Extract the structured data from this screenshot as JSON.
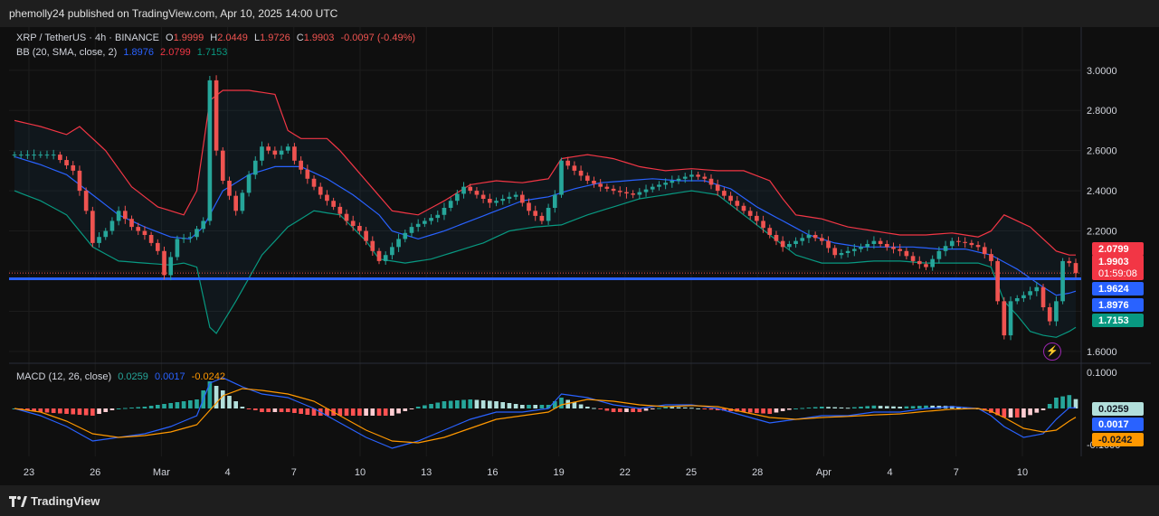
{
  "header": {
    "published": "phemolly24 published on TradingView.com, Apr 10, 2025 14:00 UTC"
  },
  "footer": {
    "brand": "TradingView"
  },
  "legend_main": {
    "symbol": "XRP / TetherUS · 4h · BINANCE",
    "o_label": "O",
    "o": "1.9999",
    "h_label": "H",
    "h": "2.0449",
    "l_label": "L",
    "l": "1.9726",
    "c_label": "C",
    "c": "1.9903",
    "change": "-0.0097 (-0.49%)"
  },
  "legend_bb": {
    "label": "BB (20, SMA, close, 2)",
    "basis": "1.8976",
    "upper": "2.0799",
    "lower": "1.7153"
  },
  "legend_macd": {
    "label": "MACD (12, 26, close)",
    "hist": "0.0259",
    "macd": "0.0017",
    "signal": "-0.0242"
  },
  "colors": {
    "up": "#26a69a",
    "down": "#ef5350",
    "bb_upper": "#f23645",
    "bb_basis": "#2962ff",
    "bb_lower": "#089981",
    "hline": "#2962ff",
    "signal": "#ff9800",
    "macd": "#2962ff"
  },
  "chart_data": [
    {
      "type": "candlestick",
      "title": "XRP / TetherUS · 4h · BINANCE",
      "y_ticks": [
        "3.0000",
        "2.8000",
        "2.6000",
        "2.4000",
        "2.2000",
        "1.6000"
      ],
      "ylim": [
        1.55,
        3.08
      ],
      "x_ticks": [
        "23",
        "26",
        "Mar",
        "4",
        "7",
        "10",
        "13",
        "16",
        "19",
        "22",
        "25",
        "28",
        "Apr",
        "4",
        "7",
        "10"
      ],
      "horizontal_line": 1.962,
      "price_labels": [
        {
          "text": "2.0799",
          "value": 2.0799,
          "kind": "bb_upper"
        },
        {
          "text": "1.9903",
          "value": 1.9903,
          "kind": "last",
          "sub": "01:59:08"
        },
        {
          "text": "1.9624",
          "value": 1.9624,
          "kind": "hline"
        },
        {
          "text": "1.8976",
          "value": 1.8976,
          "kind": "bb_basis"
        },
        {
          "text": "1.7153",
          "value": 1.7153,
          "kind": "bb_lower"
        }
      ],
      "close_path": [
        [
          0,
          2.58
        ],
        [
          6,
          2.58
        ],
        [
          9,
          2.5
        ],
        [
          11,
          2.3
        ],
        [
          12,
          2.14
        ],
        [
          14,
          2.2
        ],
        [
          16,
          2.3
        ],
        [
          18,
          2.22
        ],
        [
          20,
          2.18
        ],
        [
          22,
          2.1
        ],
        [
          23,
          1.98
        ],
        [
          25,
          2.16
        ],
        [
          27,
          2.17
        ],
        [
          29,
          2.25
        ],
        [
          30,
          2.95
        ],
        [
          31,
          2.6
        ],
        [
          32,
          2.45
        ],
        [
          34,
          2.3
        ],
        [
          36,
          2.48
        ],
        [
          38,
          2.62
        ],
        [
          40,
          2.58
        ],
        [
          42,
          2.62
        ],
        [
          43,
          2.55
        ],
        [
          45,
          2.46
        ],
        [
          47,
          2.38
        ],
        [
          49,
          2.32
        ],
        [
          51,
          2.25
        ],
        [
          53,
          2.2
        ],
        [
          55,
          2.1
        ],
        [
          56,
          2.05
        ],
        [
          57,
          2.08
        ],
        [
          59,
          2.16
        ],
        [
          61,
          2.22
        ],
        [
          63,
          2.25
        ],
        [
          65,
          2.28
        ],
        [
          67,
          2.35
        ],
        [
          69,
          2.42
        ],
        [
          71,
          2.38
        ],
        [
          73,
          2.34
        ],
        [
          75,
          2.36
        ],
        [
          77,
          2.38
        ],
        [
          79,
          2.3
        ],
        [
          81,
          2.25
        ],
        [
          83,
          2.38
        ],
        [
          84,
          2.55
        ],
        [
          86,
          2.5
        ],
        [
          88,
          2.45
        ],
        [
          90,
          2.42
        ],
        [
          92,
          2.4
        ],
        [
          95,
          2.38
        ],
        [
          98,
          2.42
        ],
        [
          101,
          2.45
        ],
        [
          104,
          2.48
        ],
        [
          106,
          2.46
        ],
        [
          108,
          2.4
        ],
        [
          110,
          2.35
        ],
        [
          112,
          2.3
        ],
        [
          114,
          2.25
        ],
        [
          116,
          2.18
        ],
        [
          118,
          2.12
        ],
        [
          120,
          2.15
        ],
        [
          122,
          2.18
        ],
        [
          124,
          2.15
        ],
        [
          126,
          2.08
        ],
        [
          128,
          2.1
        ],
        [
          130,
          2.12
        ],
        [
          132,
          2.15
        ],
        [
          134,
          2.12
        ],
        [
          136,
          2.1
        ],
        [
          138,
          2.05
        ],
        [
          140,
          2.02
        ],
        [
          142,
          2.1
        ],
        [
          144,
          2.15
        ],
        [
          146,
          2.14
        ],
        [
          148,
          2.12
        ],
        [
          150,
          2.05
        ],
        [
          151,
          1.85
        ],
        [
          152,
          1.68
        ],
        [
          153,
          1.85
        ],
        [
          155,
          1.88
        ],
        [
          157,
          1.92
        ],
        [
          158,
          1.82
        ],
        [
          159,
          1.75
        ],
        [
          160,
          1.85
        ],
        [
          161,
          2.05
        ],
        [
          162,
          2.04
        ],
        [
          163,
          1.99
        ]
      ],
      "bb_upper_path": [
        [
          0,
          2.75
        ],
        [
          4,
          2.72
        ],
        [
          8,
          2.68
        ],
        [
          10,
          2.72
        ],
        [
          14,
          2.6
        ],
        [
          18,
          2.42
        ],
        [
          22,
          2.32
        ],
        [
          26,
          2.28
        ],
        [
          28,
          2.4
        ],
        [
          30,
          2.85
        ],
        [
          32,
          2.9
        ],
        [
          36,
          2.9
        ],
        [
          40,
          2.88
        ],
        [
          42,
          2.7
        ],
        [
          44,
          2.66
        ],
        [
          48,
          2.66
        ],
        [
          50,
          2.6
        ],
        [
          54,
          2.45
        ],
        [
          58,
          2.3
        ],
        [
          62,
          2.28
        ],
        [
          66,
          2.35
        ],
        [
          70,
          2.43
        ],
        [
          74,
          2.45
        ],
        [
          78,
          2.44
        ],
        [
          82,
          2.46
        ],
        [
          84,
          2.56
        ],
        [
          88,
          2.58
        ],
        [
          92,
          2.56
        ],
        [
          96,
          2.52
        ],
        [
          100,
          2.5
        ],
        [
          104,
          2.51
        ],
        [
          108,
          2.5
        ],
        [
          112,
          2.5
        ],
        [
          116,
          2.45
        ],
        [
          118,
          2.36
        ],
        [
          120,
          2.28
        ],
        [
          124,
          2.26
        ],
        [
          128,
          2.22
        ],
        [
          132,
          2.2
        ],
        [
          136,
          2.18
        ],
        [
          140,
          2.18
        ],
        [
          144,
          2.19
        ],
        [
          148,
          2.17
        ],
        [
          150,
          2.2
        ],
        [
          152,
          2.28
        ],
        [
          156,
          2.22
        ],
        [
          160,
          2.1
        ],
        [
          162,
          2.08
        ],
        [
          163,
          2.08
        ]
      ],
      "bb_basis_path": [
        [
          0,
          2.57
        ],
        [
          4,
          2.53
        ],
        [
          8,
          2.48
        ],
        [
          12,
          2.38
        ],
        [
          16,
          2.28
        ],
        [
          20,
          2.22
        ],
        [
          24,
          2.17
        ],
        [
          27,
          2.16
        ],
        [
          29,
          2.22
        ],
        [
          32,
          2.4
        ],
        [
          36,
          2.48
        ],
        [
          40,
          2.52
        ],
        [
          44,
          2.52
        ],
        [
          48,
          2.46
        ],
        [
          52,
          2.38
        ],
        [
          56,
          2.28
        ],
        [
          58,
          2.2
        ],
        [
          62,
          2.16
        ],
        [
          66,
          2.2
        ],
        [
          70,
          2.25
        ],
        [
          74,
          2.3
        ],
        [
          78,
          2.35
        ],
        [
          82,
          2.37
        ],
        [
          86,
          2.41
        ],
        [
          90,
          2.44
        ],
        [
          94,
          2.45
        ],
        [
          98,
          2.46
        ],
        [
          102,
          2.45
        ],
        [
          106,
          2.45
        ],
        [
          110,
          2.41
        ],
        [
          114,
          2.32
        ],
        [
          118,
          2.25
        ],
        [
          122,
          2.18
        ],
        [
          126,
          2.14
        ],
        [
          130,
          2.12
        ],
        [
          134,
          2.12
        ],
        [
          138,
          2.12
        ],
        [
          142,
          2.11
        ],
        [
          146,
          2.11
        ],
        [
          150,
          2.08
        ],
        [
          154,
          2.01
        ],
        [
          158,
          1.92
        ],
        [
          160,
          1.88
        ],
        [
          162,
          1.89
        ],
        [
          163,
          1.9
        ]
      ],
      "bb_lower_path": [
        [
          0,
          2.4
        ],
        [
          4,
          2.35
        ],
        [
          8,
          2.28
        ],
        [
          12,
          2.12
        ],
        [
          16,
          2.05
        ],
        [
          20,
          2.04
        ],
        [
          24,
          2.03
        ],
        [
          26,
          2.04
        ],
        [
          28,
          2.02
        ],
        [
          30,
          1.72
        ],
        [
          31,
          1.69
        ],
        [
          34,
          1.85
        ],
        [
          38,
          2.08
        ],
        [
          42,
          2.22
        ],
        [
          46,
          2.3
        ],
        [
          50,
          2.28
        ],
        [
          54,
          2.15
        ],
        [
          56,
          2.06
        ],
        [
          60,
          2.04
        ],
        [
          64,
          2.06
        ],
        [
          68,
          2.1
        ],
        [
          72,
          2.14
        ],
        [
          76,
          2.2
        ],
        [
          80,
          2.22
        ],
        [
          84,
          2.23
        ],
        [
          88,
          2.28
        ],
        [
          92,
          2.32
        ],
        [
          96,
          2.36
        ],
        [
          100,
          2.38
        ],
        [
          104,
          2.4
        ],
        [
          108,
          2.38
        ],
        [
          112,
          2.28
        ],
        [
          116,
          2.18
        ],
        [
          120,
          2.08
        ],
        [
          124,
          2.04
        ],
        [
          128,
          2.04
        ],
        [
          132,
          2.05
        ],
        [
          136,
          2.05
        ],
        [
          140,
          2.04
        ],
        [
          144,
          2.04
        ],
        [
          148,
          2.04
        ],
        [
          150,
          2.02
        ],
        [
          152,
          1.85
        ],
        [
          154,
          1.78
        ],
        [
          156,
          1.7
        ],
        [
          158,
          1.68
        ],
        [
          160,
          1.67
        ],
        [
          162,
          1.7
        ],
        [
          163,
          1.72
        ]
      ]
    },
    {
      "type": "macd",
      "title": "MACD (12, 26, close)",
      "y_ticks": [
        "0.1000",
        "-0.1000"
      ],
      "ylim": [
        -0.125,
        0.125
      ],
      "macd_path": [
        [
          0,
          0.0
        ],
        [
          4,
          -0.02
        ],
        [
          8,
          -0.05
        ],
        [
          12,
          -0.09
        ],
        [
          16,
          -0.08
        ],
        [
          20,
          -0.07
        ],
        [
          24,
          -0.05
        ],
        [
          28,
          -0.02
        ],
        [
          30,
          0.07
        ],
        [
          32,
          0.085
        ],
        [
          35,
          0.06
        ],
        [
          38,
          0.04
        ],
        [
          42,
          0.03
        ],
        [
          46,
          0.0
        ],
        [
          50,
          -0.04
        ],
        [
          54,
          -0.08
        ],
        [
          58,
          -0.11
        ],
        [
          62,
          -0.09
        ],
        [
          66,
          -0.06
        ],
        [
          70,
          -0.03
        ],
        [
          74,
          -0.01
        ],
        [
          78,
          -0.01
        ],
        [
          82,
          0.0
        ],
        [
          84,
          0.04
        ],
        [
          88,
          0.03
        ],
        [
          92,
          0.01
        ],
        [
          96,
          0.0
        ],
        [
          100,
          0.01
        ],
        [
          104,
          0.01
        ],
        [
          108,
          0.0
        ],
        [
          112,
          -0.02
        ],
        [
          116,
          -0.04
        ],
        [
          120,
          -0.03
        ],
        [
          124,
          -0.02
        ],
        [
          128,
          -0.02
        ],
        [
          132,
          -0.01
        ],
        [
          136,
          -0.01
        ],
        [
          140,
          0.0
        ],
        [
          144,
          0.005
        ],
        [
          148,
          0.0
        ],
        [
          150,
          -0.02
        ],
        [
          152,
          -0.05
        ],
        [
          155,
          -0.08
        ],
        [
          158,
          -0.07
        ],
        [
          160,
          -0.03
        ],
        [
          162,
          0.002
        ],
        [
          163,
          0.0017
        ]
      ],
      "signal_path": [
        [
          0,
          0.0
        ],
        [
          4,
          -0.01
        ],
        [
          8,
          -0.035
        ],
        [
          12,
          -0.07
        ],
        [
          16,
          -0.08
        ],
        [
          20,
          -0.075
        ],
        [
          24,
          -0.065
        ],
        [
          28,
          -0.045
        ],
        [
          30,
          -0.005
        ],
        [
          32,
          0.035
        ],
        [
          35,
          0.055
        ],
        [
          38,
          0.05
        ],
        [
          42,
          0.04
        ],
        [
          46,
          0.02
        ],
        [
          50,
          -0.02
        ],
        [
          54,
          -0.06
        ],
        [
          58,
          -0.09
        ],
        [
          62,
          -0.095
        ],
        [
          66,
          -0.08
        ],
        [
          70,
          -0.055
        ],
        [
          74,
          -0.03
        ],
        [
          78,
          -0.02
        ],
        [
          82,
          -0.01
        ],
        [
          84,
          0.01
        ],
        [
          88,
          0.025
        ],
        [
          92,
          0.02
        ],
        [
          96,
          0.01
        ],
        [
          100,
          0.005
        ],
        [
          104,
          0.008
        ],
        [
          108,
          0.005
        ],
        [
          112,
          -0.01
        ],
        [
          116,
          -0.025
        ],
        [
          120,
          -0.03
        ],
        [
          124,
          -0.025
        ],
        [
          128,
          -0.022
        ],
        [
          132,
          -0.018
        ],
        [
          136,
          -0.015
        ],
        [
          140,
          -0.008
        ],
        [
          144,
          -0.002
        ],
        [
          148,
          0.0
        ],
        [
          150,
          -0.008
        ],
        [
          152,
          -0.025
        ],
        [
          155,
          -0.055
        ],
        [
          158,
          -0.065
        ],
        [
          160,
          -0.06
        ],
        [
          162,
          -0.035
        ],
        [
          163,
          -0.0242
        ]
      ]
    }
  ]
}
